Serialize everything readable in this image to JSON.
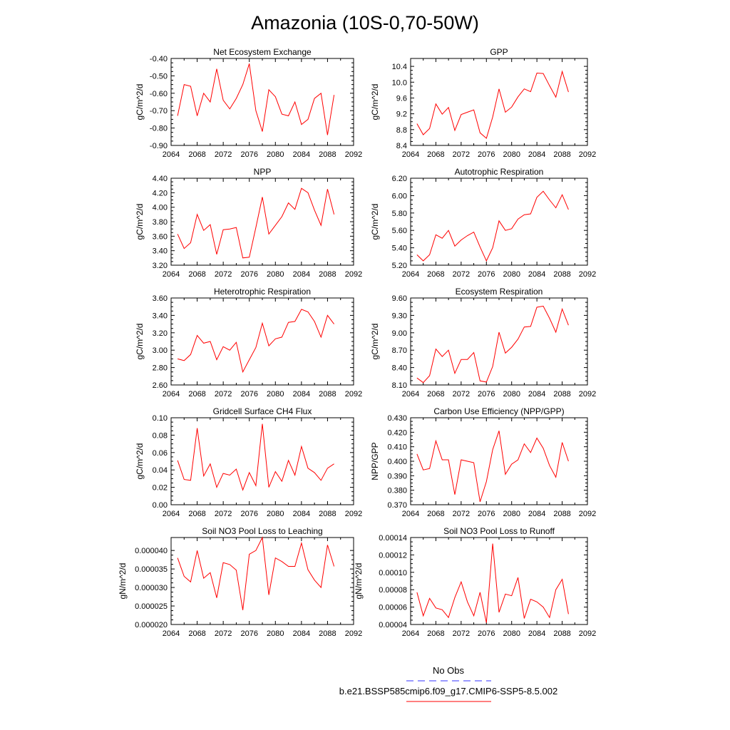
{
  "main_title": "Amazonia (10S-0,70-50W)",
  "legend": {
    "items": [
      {
        "label": "No Obs",
        "color": "#3333ff",
        "dash": true
      },
      {
        "label": "b.e21.BSSP585cmip6.f09_g17.CMIP6-SSP5-8.5.002",
        "color": "#ff0000",
        "dash": false
      }
    ]
  },
  "chart_data": [
    {
      "type": "line",
      "title": "Net Ecosystem Exchange",
      "ylabel": "gC/m^2/d",
      "xlim": [
        2064,
        2092
      ],
      "xticks": [
        2064,
        2068,
        2072,
        2076,
        2080,
        2084,
        2088,
        2092
      ],
      "ylim": [
        -0.9,
        -0.4
      ],
      "yticks": [
        "-0.90",
        "-0.80",
        "-0.70",
        "-0.60",
        "-0.50",
        "-0.40"
      ],
      "series": [
        {
          "color": "#ff0000",
          "x": [
            2065,
            2066,
            2067,
            2068,
            2069,
            2070,
            2071,
            2072,
            2073,
            2074,
            2075,
            2076,
            2077,
            2078,
            2079,
            2080,
            2081,
            2082,
            2083,
            2084,
            2085,
            2086,
            2087,
            2088,
            2089
          ],
          "y": [
            -0.73,
            -0.55,
            -0.56,
            -0.73,
            -0.6,
            -0.65,
            -0.46,
            -0.64,
            -0.69,
            -0.63,
            -0.55,
            -0.43,
            -0.7,
            -0.82,
            -0.58,
            -0.62,
            -0.72,
            -0.73,
            -0.65,
            -0.78,
            -0.75,
            -0.63,
            -0.6,
            -0.84,
            -0.61
          ]
        }
      ]
    },
    {
      "type": "line",
      "title": "GPP",
      "ylabel": "gC/m^2/d",
      "xlim": [
        2064,
        2092
      ],
      "xticks": [
        2064,
        2068,
        2072,
        2076,
        2080,
        2084,
        2088,
        2092
      ],
      "ylim": [
        8.4,
        10.6
      ],
      "yticks": [
        "8.4",
        "8.8",
        "9.2",
        "9.6",
        "10.0",
        "10.4"
      ],
      "series": [
        {
          "color": "#ff0000",
          "x": [
            2065,
            2066,
            2067,
            2068,
            2069,
            2070,
            2071,
            2072,
            2073,
            2074,
            2075,
            2076,
            2077,
            2078,
            2079,
            2080,
            2081,
            2082,
            2083,
            2084,
            2085,
            2086,
            2087,
            2088,
            2089
          ],
          "y": [
            8.95,
            8.67,
            8.83,
            9.45,
            9.19,
            9.36,
            8.78,
            9.18,
            9.24,
            9.3,
            8.72,
            8.58,
            9.12,
            9.83,
            9.24,
            9.37,
            9.63,
            9.83,
            9.76,
            10.23,
            10.22,
            9.91,
            9.62,
            10.27,
            9.75
          ]
        }
      ]
    },
    {
      "type": "line",
      "title": "NPP",
      "ylabel": "gC/m^2/d",
      "xlim": [
        2064,
        2092
      ],
      "xticks": [
        2064,
        2068,
        2072,
        2076,
        2080,
        2084,
        2088,
        2092
      ],
      "ylim": [
        3.2,
        4.4
      ],
      "yticks": [
        "3.20",
        "3.40",
        "3.60",
        "3.80",
        "4.00",
        "4.20",
        "4.40"
      ],
      "series": [
        {
          "color": "#ff0000",
          "x": [
            2065,
            2066,
            2067,
            2068,
            2069,
            2070,
            2071,
            2072,
            2073,
            2074,
            2075,
            2076,
            2077,
            2078,
            2079,
            2080,
            2081,
            2082,
            2083,
            2084,
            2085,
            2086,
            2087,
            2088,
            2089
          ],
          "y": [
            3.63,
            3.43,
            3.51,
            3.9,
            3.68,
            3.76,
            3.35,
            3.69,
            3.7,
            3.72,
            3.3,
            3.31,
            3.72,
            4.14,
            3.63,
            3.75,
            3.87,
            4.06,
            3.97,
            4.26,
            4.2,
            3.96,
            3.75,
            4.25,
            3.9
          ]
        }
      ]
    },
    {
      "type": "line",
      "title": "Autotrophic Respiration",
      "ylabel": "gC/m^2/d",
      "xlim": [
        2064,
        2092
      ],
      "xticks": [
        2064,
        2068,
        2072,
        2076,
        2080,
        2084,
        2088,
        2092
      ],
      "ylim": [
        5.2,
        6.2
      ],
      "yticks": [
        "5.20",
        "5.40",
        "5.60",
        "5.80",
        "6.00",
        "6.20"
      ],
      "series": [
        {
          "color": "#ff0000",
          "x": [
            2065,
            2066,
            2067,
            2068,
            2069,
            2070,
            2071,
            2072,
            2073,
            2074,
            2075,
            2076,
            2077,
            2078,
            2079,
            2080,
            2081,
            2082,
            2083,
            2084,
            2085,
            2086,
            2087,
            2088,
            2089
          ],
          "y": [
            5.32,
            5.25,
            5.32,
            5.55,
            5.51,
            5.6,
            5.42,
            5.49,
            5.54,
            5.58,
            5.41,
            5.25,
            5.4,
            5.71,
            5.6,
            5.62,
            5.73,
            5.78,
            5.79,
            5.98,
            6.05,
            5.95,
            5.86,
            6.01,
            5.84
          ]
        }
      ]
    },
    {
      "type": "line",
      "title": "Heterotrophic Respiration",
      "ylabel": "gC/m^2/d",
      "xlim": [
        2064,
        2092
      ],
      "xticks": [
        2064,
        2068,
        2072,
        2076,
        2080,
        2084,
        2088,
        2092
      ],
      "ylim": [
        2.6,
        3.6
      ],
      "yticks": [
        "2.60",
        "2.80",
        "3.00",
        "3.20",
        "3.40",
        "3.60"
      ],
      "series": [
        {
          "color": "#ff0000",
          "x": [
            2065,
            2066,
            2067,
            2068,
            2069,
            2070,
            2071,
            2072,
            2073,
            2074,
            2075,
            2076,
            2077,
            2078,
            2079,
            2080,
            2081,
            2082,
            2083,
            2084,
            2085,
            2086,
            2087,
            2088,
            2089
          ],
          "y": [
            2.9,
            2.88,
            2.95,
            3.17,
            3.08,
            3.1,
            2.89,
            3.04,
            3.0,
            3.09,
            2.75,
            2.89,
            3.03,
            3.31,
            3.05,
            3.13,
            3.15,
            3.32,
            3.33,
            3.47,
            3.44,
            3.33,
            3.15,
            3.4,
            3.3
          ]
        }
      ]
    },
    {
      "type": "line",
      "title": "Ecosystem Respiration",
      "ylabel": "gC/m^2/d",
      "xlim": [
        2064,
        2092
      ],
      "xticks": [
        2064,
        2068,
        2072,
        2076,
        2080,
        2084,
        2088,
        2092
      ],
      "ylim": [
        8.1,
        9.6
      ],
      "yticks": [
        "8.10",
        "8.40",
        "8.70",
        "9.00",
        "9.30",
        "9.60"
      ],
      "series": [
        {
          "color": "#ff0000",
          "x": [
            2065,
            2066,
            2067,
            2068,
            2069,
            2070,
            2071,
            2072,
            2073,
            2074,
            2075,
            2076,
            2077,
            2078,
            2079,
            2080,
            2081,
            2082,
            2083,
            2084,
            2085,
            2086,
            2087,
            2088,
            2089
          ],
          "y": [
            8.22,
            8.14,
            8.26,
            8.72,
            8.59,
            8.7,
            8.3,
            8.54,
            8.54,
            8.66,
            8.17,
            8.15,
            8.42,
            9.01,
            8.65,
            8.75,
            8.89,
            9.1,
            9.11,
            9.44,
            9.46,
            9.25,
            9.01,
            9.41,
            9.13
          ]
        }
      ]
    },
    {
      "type": "line",
      "title": "Gridcell Surface CH4 Flux",
      "ylabel": "gC/m^2/d",
      "xlim": [
        2064,
        2092
      ],
      "xticks": [
        2064,
        2068,
        2072,
        2076,
        2080,
        2084,
        2088,
        2092
      ],
      "ylim": [
        0.0,
        0.1
      ],
      "yticks": [
        "0.00",
        "0.02",
        "0.04",
        "0.06",
        "0.08",
        "0.10"
      ],
      "series": [
        {
          "color": "#ff0000",
          "x": [
            2065,
            2066,
            2067,
            2068,
            2069,
            2070,
            2071,
            2072,
            2073,
            2074,
            2075,
            2076,
            2077,
            2078,
            2079,
            2080,
            2081,
            2082,
            2083,
            2084,
            2085,
            2086,
            2087,
            2088,
            2089
          ],
          "y": [
            0.051,
            0.029,
            0.028,
            0.088,
            0.033,
            0.047,
            0.02,
            0.036,
            0.034,
            0.041,
            0.017,
            0.037,
            0.022,
            0.093,
            0.02,
            0.038,
            0.027,
            0.051,
            0.034,
            0.067,
            0.042,
            0.037,
            0.028,
            0.042,
            0.047
          ]
        }
      ]
    },
    {
      "type": "line",
      "title": "Carbon Use Efficiency (NPP/GPP)",
      "ylabel": "NPP/GPP",
      "xlim": [
        2064,
        2092
      ],
      "xticks": [
        2064,
        2068,
        2072,
        2076,
        2080,
        2084,
        2088,
        2092
      ],
      "ylim": [
        0.37,
        0.43
      ],
      "yticks": [
        "0.370",
        "0.380",
        "0.390",
        "0.400",
        "0.410",
        "0.420",
        "0.430"
      ],
      "series": [
        {
          "color": "#ff0000",
          "x": [
            2065,
            2066,
            2067,
            2068,
            2069,
            2070,
            2071,
            2072,
            2073,
            2074,
            2075,
            2076,
            2077,
            2078,
            2079,
            2080,
            2081,
            2082,
            2083,
            2084,
            2085,
            2086,
            2087,
            2088,
            2089
          ],
          "y": [
            0.405,
            0.394,
            0.395,
            0.414,
            0.401,
            0.401,
            0.377,
            0.401,
            0.4,
            0.399,
            0.372,
            0.386,
            0.408,
            0.421,
            0.391,
            0.398,
            0.401,
            0.412,
            0.406,
            0.416,
            0.409,
            0.397,
            0.389,
            0.413,
            0.4
          ]
        }
      ]
    },
    {
      "type": "line",
      "title": "Soil NO3 Pool Loss to Leaching",
      "ylabel": "gN/m^2/d",
      "xlim": [
        2064,
        2092
      ],
      "xticks": [
        2064,
        2068,
        2072,
        2076,
        2080,
        2084,
        2088,
        2092
      ],
      "ylim": [
        2e-05,
        4.35e-05
      ],
      "yticks": [
        "0.000020",
        "0.000025",
        "0.000030",
        "0.000035",
        "0.000040"
      ],
      "series": [
        {
          "color": "#ff0000",
          "x": [
            2065,
            2066,
            2067,
            2068,
            2069,
            2070,
            2071,
            2072,
            2073,
            2074,
            2075,
            2076,
            2077,
            2078,
            2079,
            2080,
            2081,
            2082,
            2083,
            2084,
            2085,
            2086,
            2087,
            2088,
            2089
          ],
          "y": [
            3.8e-05,
            3.3e-05,
            3.15e-05,
            4e-05,
            3.25e-05,
            3.4e-05,
            2.72e-05,
            3.67e-05,
            3.62e-05,
            3.47e-05,
            2.39e-05,
            3.9e-05,
            4e-05,
            4.35e-05,
            2.8e-05,
            3.8e-05,
            3.7e-05,
            3.57e-05,
            3.57e-05,
            4.2e-05,
            3.48e-05,
            3.2e-05,
            3e-05,
            4.15e-05,
            3.57e-05
          ]
        }
      ]
    },
    {
      "type": "line",
      "title": "Soil NO3 Pool Loss to Runoff",
      "ylabel": "gN/m^2/d",
      "xlim": [
        2064,
        2092
      ],
      "xticks": [
        2064,
        2068,
        2072,
        2076,
        2080,
        2084,
        2088,
        2092
      ],
      "ylim": [
        4e-05,
        0.00014
      ],
      "yticks": [
        "0.00004",
        "0.00006",
        "0.00008",
        "0.00010",
        "0.00012",
        "0.00014"
      ],
      "series": [
        {
          "color": "#ff0000",
          "x": [
            2065,
            2066,
            2067,
            2068,
            2069,
            2070,
            2071,
            2072,
            2073,
            2074,
            2075,
            2076,
            2077,
            2078,
            2079,
            2080,
            2081,
            2082,
            2083,
            2084,
            2085,
            2086,
            2087,
            2088,
            2089
          ],
          "y": [
            7.7e-05,
            5e-05,
            7e-05,
            5.9e-05,
            5.7e-05,
            4.8e-05,
            7.1e-05,
            8.9e-05,
            6.6e-05,
            5e-05,
            7.7e-05,
            4.2e-05,
            0.000133,
            5.4e-05,
            7.5e-05,
            7.3e-05,
            9.4e-05,
            4.7e-05,
            6.9e-05,
            6.6e-05,
            6e-05,
            4.8e-05,
            8e-05,
            9.2e-05,
            5.2e-05
          ]
        }
      ]
    }
  ]
}
